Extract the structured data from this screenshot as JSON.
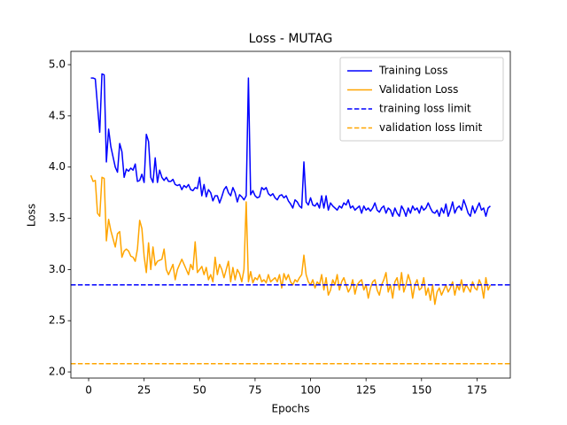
{
  "chart_data": {
    "type": "line",
    "title": "Loss - MUTAG",
    "xlabel": "Epochs",
    "ylabel": "Loss",
    "x": [
      1,
      2,
      3,
      4,
      5,
      6,
      7,
      8,
      9,
      10,
      11,
      12,
      13,
      14,
      15,
      16,
      17,
      18,
      19,
      20,
      21,
      22,
      23,
      24,
      25,
      26,
      27,
      28,
      29,
      30,
      31,
      32,
      33,
      34,
      35,
      36,
      37,
      38,
      39,
      40,
      41,
      42,
      43,
      44,
      45,
      46,
      47,
      48,
      49,
      50,
      51,
      52,
      53,
      54,
      55,
      56,
      57,
      58,
      59,
      60,
      61,
      62,
      63,
      64,
      65,
      66,
      67,
      68,
      69,
      70,
      71,
      72,
      73,
      74,
      75,
      76,
      77,
      78,
      79,
      80,
      81,
      82,
      83,
      84,
      85,
      86,
      87,
      88,
      89,
      90,
      91,
      92,
      93,
      94,
      95,
      96,
      97,
      98,
      99,
      100,
      101,
      102,
      103,
      104,
      105,
      106,
      107,
      108,
      109,
      110,
      111,
      112,
      113,
      114,
      115,
      116,
      117,
      118,
      119,
      120,
      121,
      122,
      123,
      124,
      125,
      126,
      127,
      128,
      129,
      130,
      131,
      132,
      133,
      134,
      135,
      136,
      137,
      138,
      139,
      140,
      141,
      142,
      143,
      144,
      145,
      146,
      147,
      148,
      149,
      150,
      151,
      152,
      153,
      154,
      155,
      156,
      157,
      158,
      159,
      160,
      161,
      162,
      163,
      164,
      165,
      166,
      167,
      168,
      169,
      170,
      171,
      172,
      173,
      174,
      175,
      176,
      177,
      178,
      179,
      180,
      181
    ],
    "series": [
      {
        "name": "Training Loss",
        "color": "#0000ff",
        "values": [
          4.87,
          4.87,
          4.86,
          4.6,
          4.34,
          4.91,
          4.9,
          4.05,
          4.37,
          4.2,
          4.1,
          4.0,
          3.95,
          4.23,
          4.15,
          3.9,
          3.98,
          3.96,
          3.99,
          3.97,
          4.03,
          3.86,
          3.87,
          3.93,
          3.85,
          4.32,
          4.25,
          3.9,
          3.85,
          4.09,
          3.85,
          3.97,
          3.9,
          3.87,
          3.9,
          3.86,
          3.86,
          3.88,
          3.83,
          3.82,
          3.83,
          3.78,
          3.82,
          3.8,
          3.83,
          3.78,
          3.77,
          3.8,
          3.79,
          3.9,
          3.72,
          3.83,
          3.71,
          3.78,
          3.75,
          3.67,
          3.72,
          3.72,
          3.65,
          3.71,
          3.78,
          3.81,
          3.75,
          3.72,
          3.8,
          3.75,
          3.66,
          3.73,
          3.71,
          3.68,
          3.72,
          4.87,
          3.73,
          3.77,
          3.72,
          3.7,
          3.71,
          3.8,
          3.78,
          3.8,
          3.74,
          3.72,
          3.74,
          3.7,
          3.68,
          3.72,
          3.73,
          3.7,
          3.72,
          3.67,
          3.64,
          3.6,
          3.68,
          3.66,
          3.62,
          3.6,
          4.05,
          3.66,
          3.63,
          3.7,
          3.63,
          3.62,
          3.65,
          3.6,
          3.72,
          3.6,
          3.72,
          3.58,
          3.65,
          3.62,
          3.6,
          3.58,
          3.62,
          3.6,
          3.65,
          3.63,
          3.68,
          3.6,
          3.62,
          3.58,
          3.6,
          3.62,
          3.55,
          3.62,
          3.58,
          3.6,
          3.57,
          3.6,
          3.65,
          3.58,
          3.56,
          3.6,
          3.62,
          3.55,
          3.6,
          3.58,
          3.52,
          3.6,
          3.55,
          3.52,
          3.62,
          3.58,
          3.52,
          3.6,
          3.55,
          3.62,
          3.58,
          3.6,
          3.55,
          3.62,
          3.58,
          3.6,
          3.65,
          3.6,
          3.56,
          3.55,
          3.58,
          3.52,
          3.6,
          3.55,
          3.64,
          3.52,
          3.58,
          3.66,
          3.55,
          3.6,
          3.62,
          3.58,
          3.68,
          3.62,
          3.55,
          3.52,
          3.62,
          3.55,
          3.6,
          3.65,
          3.58,
          3.6,
          3.52,
          3.6,
          3.62
        ]
      },
      {
        "name": "Validation Loss",
        "color": "#ffa500",
        "values": [
          3.92,
          3.86,
          3.87,
          3.55,
          3.52,
          3.9,
          3.89,
          3.28,
          3.49,
          3.38,
          3.3,
          3.22,
          3.35,
          3.37,
          3.12,
          3.18,
          3.2,
          3.18,
          3.13,
          3.12,
          3.08,
          3.2,
          3.48,
          3.4,
          3.13,
          2.97,
          3.26,
          3.0,
          3.22,
          3.04,
          3.08,
          3.09,
          3.1,
          3.2,
          3.0,
          2.95,
          3.0,
          3.05,
          2.9,
          3.0,
          3.05,
          3.1,
          3.05,
          3.0,
          2.95,
          3.05,
          3.0,
          3.27,
          2.97,
          3.0,
          3.03,
          2.95,
          3.02,
          2.9,
          2.95,
          2.88,
          3.12,
          2.95,
          3.05,
          3.0,
          2.92,
          3.0,
          3.08,
          2.88,
          3.02,
          2.9,
          3.0,
          2.96,
          2.88,
          3.0,
          3.66,
          2.88,
          2.98,
          2.87,
          2.92,
          2.9,
          2.95,
          2.88,
          2.9,
          2.87,
          2.95,
          2.88,
          2.9,
          2.92,
          2.88,
          2.95,
          2.82,
          2.96,
          2.9,
          2.95,
          2.88,
          2.85,
          2.9,
          2.88,
          2.92,
          2.95,
          3.14,
          2.95,
          2.88,
          2.85,
          2.9,
          2.82,
          2.88,
          2.85,
          2.95,
          2.8,
          2.92,
          2.75,
          2.8,
          2.9,
          2.85,
          2.95,
          2.8,
          2.88,
          2.92,
          2.85,
          2.78,
          2.82,
          2.9,
          2.76,
          2.85,
          2.88,
          2.9,
          2.8,
          2.85,
          2.72,
          2.82,
          2.88,
          2.9,
          2.8,
          2.75,
          2.85,
          2.9,
          2.97,
          2.78,
          2.85,
          2.72,
          2.88,
          2.92,
          2.8,
          2.97,
          2.78,
          2.85,
          2.95,
          2.88,
          2.72,
          2.85,
          2.9,
          2.8,
          2.82,
          2.92,
          2.75,
          2.82,
          2.7,
          2.85,
          2.66,
          2.78,
          2.82,
          2.75,
          2.8,
          2.85,
          2.78,
          2.82,
          2.88,
          2.75,
          2.85,
          2.8,
          2.9,
          2.78,
          2.85,
          2.82,
          2.78,
          2.88,
          2.82,
          2.8,
          2.9,
          2.85,
          2.72,
          2.92,
          2.8,
          2.85
        ]
      }
    ],
    "reference_lines": [
      {
        "name": "training loss limit",
        "value": 2.85,
        "color": "#0000ff",
        "linestyle": "dashed"
      },
      {
        "name": "validation loss limit",
        "value": 2.08,
        "color": "#ffa500",
        "linestyle": "dashed"
      }
    ],
    "xlim": [
      -8,
      190
    ],
    "ylim": [
      1.94,
      5.13
    ],
    "xticks": [
      0,
      25,
      50,
      75,
      100,
      125,
      150,
      175
    ],
    "yticks": [
      {
        "value": 2,
        "label": "2.0"
      },
      2.5,
      {
        "value": 3,
        "label": "3.0"
      },
      3.5,
      {
        "value": 4,
        "label": "4.0"
      },
      4.5,
      {
        "value": 5,
        "label": "5.0"
      }
    ],
    "legend": "upper right"
  }
}
